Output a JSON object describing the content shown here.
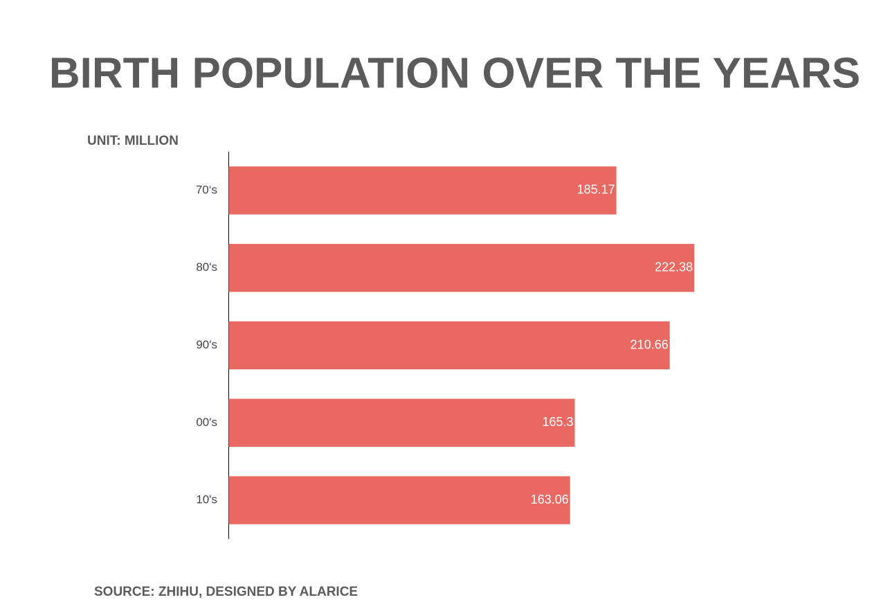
{
  "chart_data": {
    "type": "bar",
    "orientation": "horizontal",
    "title": "BIRTH POPULATION OVER THE YEARS",
    "subtitle": "UNIT: MILLION",
    "source": "SOURCE: ZHIHU, DESIGNED BY ALARICE",
    "categories": [
      "70‘s",
      "80's",
      "90's",
      "00's",
      "10's"
    ],
    "values": [
      185.17,
      222.38,
      210.66,
      165.3,
      163.06
    ],
    "color": "#e86962",
    "xlim": [
      0,
      300
    ]
  }
}
